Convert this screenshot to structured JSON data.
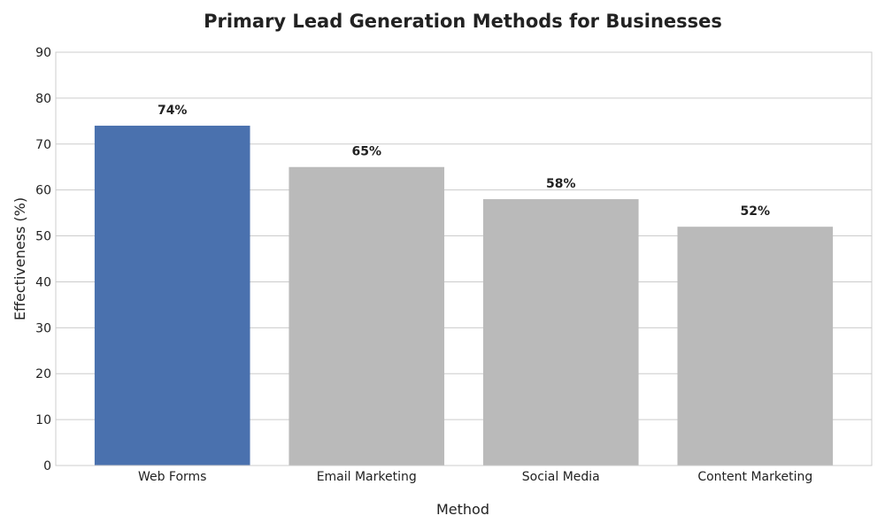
{
  "chart_data": {
    "type": "bar",
    "title": "Primary Lead Generation Methods for Businesses",
    "xlabel": "Method",
    "ylabel": "Effectiveness (%)",
    "categories": [
      "Web Forms",
      "Email Marketing",
      "Social Media",
      "Content Marketing"
    ],
    "values": [
      74,
      65,
      58,
      52
    ],
    "data_labels": [
      "74%",
      "65%",
      "58%",
      "52%"
    ],
    "ylim": [
      0,
      90
    ],
    "yticks": [
      0,
      10,
      20,
      30,
      40,
      50,
      60,
      70,
      80,
      90
    ],
    "grid": "y-major",
    "legend": "none",
    "colors": {
      "highlight": "#4a71ae",
      "default": "#bababa"
    },
    "highlight_index": 0
  }
}
